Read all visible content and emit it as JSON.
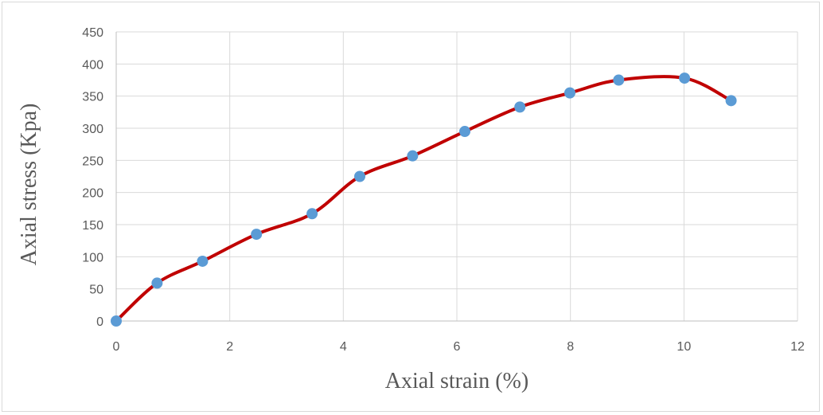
{
  "chart_data": {
    "type": "line",
    "title": "",
    "xlabel": "Axial strain (%)",
    "ylabel": "Axial stress (Kpa)",
    "xlim": [
      0,
      12
    ],
    "ylim": [
      0,
      450
    ],
    "x_ticks": [
      0,
      2,
      4,
      6,
      8,
      10,
      12
    ],
    "y_ticks": [
      0,
      50,
      100,
      150,
      200,
      250,
      300,
      350,
      400,
      450
    ],
    "grid": true,
    "legend": "none",
    "series": [
      {
        "x": [
          0,
          0.72,
          1.52,
          2.47,
          3.45,
          4.29,
          5.22,
          6.14,
          7.11,
          7.99,
          8.85,
          10.01,
          10.83
        ],
        "y": [
          0,
          59,
          93,
          135,
          167,
          225,
          257,
          295,
          333,
          355,
          375,
          378,
          343
        ],
        "line_color": "#c00000",
        "marker_color": "#5b9bd5",
        "smooth": true
      }
    ]
  }
}
